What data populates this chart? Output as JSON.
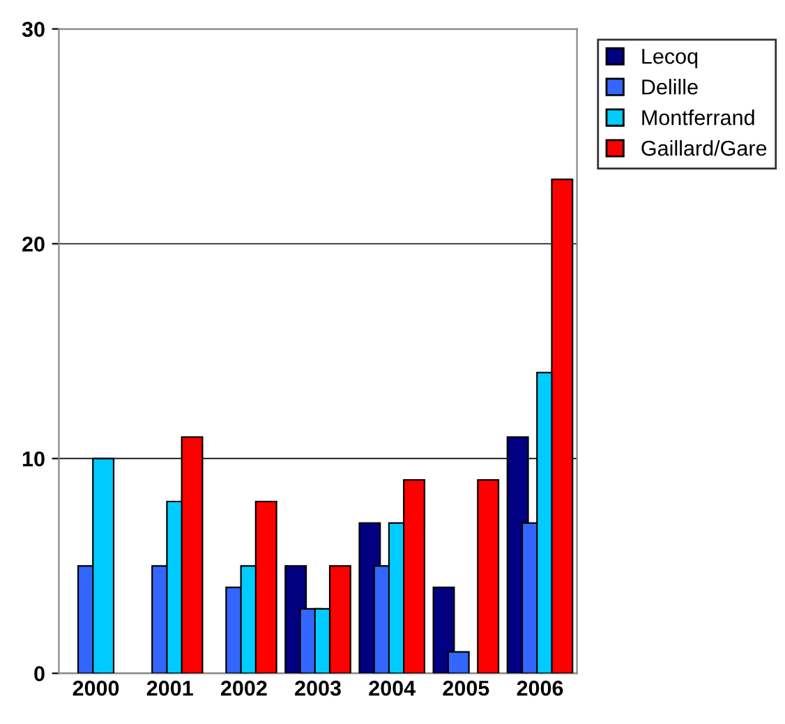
{
  "chart_data": {
    "type": "bar",
    "categories": [
      "2000",
      "2001",
      "2002",
      "2003",
      "2004",
      "2005",
      "2006"
    ],
    "series": [
      {
        "name": "Lecoq",
        "color": "#000080",
        "values": [
          0,
          0,
          0,
          5,
          7,
          4,
          11
        ]
      },
      {
        "name": "Delille",
        "color": "#3366ff",
        "values": [
          5,
          5,
          4,
          3,
          5,
          1,
          7
        ]
      },
      {
        "name": "Montferrand",
        "color": "#00ccff",
        "values": [
          10,
          8,
          5,
          3,
          7,
          0,
          14
        ]
      },
      {
        "name": "Gaillard/Gare",
        "color": "#ff0000",
        "values": [
          0,
          11,
          8,
          5,
          9,
          9,
          23
        ]
      }
    ],
    "ylim": [
      0,
      30
    ],
    "yticks": [
      0,
      10,
      20,
      30
    ],
    "grid": "y",
    "legend": "top right"
  }
}
